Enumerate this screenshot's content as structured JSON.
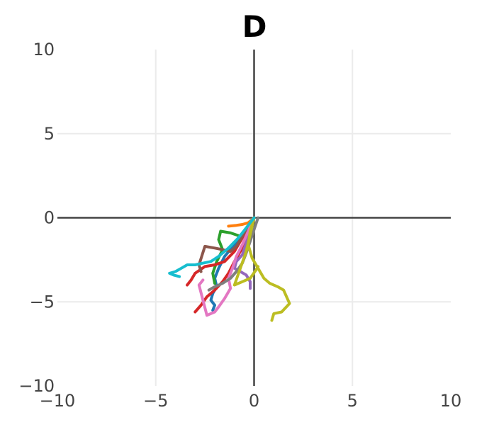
{
  "chart_data": {
    "type": "line",
    "title": "D",
    "xlabel": "",
    "ylabel": "",
    "xlim": [
      -10,
      10
    ],
    "ylim": [
      -10,
      10
    ],
    "x_ticks": [
      -10,
      -5,
      0,
      5,
      10
    ],
    "y_ticks": [
      -10,
      -5,
      0,
      5,
      10
    ],
    "x_tick_labels": [
      "−10",
      "−5",
      "0",
      "5",
      "10"
    ],
    "y_tick_labels": [
      "−10",
      "−5",
      "0",
      "5",
      "10"
    ],
    "grid": true,
    "legend": "none",
    "series": [
      {
        "color": "#1f77b4",
        "x": [
          0,
          -0.5,
          -1.0,
          -1.5,
          -1.8,
          -2.0,
          -1.9,
          -2.1,
          -2.2,
          -2.0,
          -2.1
        ],
        "y": [
          0,
          -0.8,
          -1.6,
          -2.3,
          -3.0,
          -3.6,
          -4.1,
          -4.5,
          -4.9,
          -5.2,
          -5.5
        ]
      },
      {
        "color": "#ff7f0e",
        "x": [
          0,
          -0.3,
          -0.6,
          -0.9,
          -1.3
        ],
        "y": [
          0,
          -0.3,
          -0.4,
          -0.45,
          -0.5
        ]
      },
      {
        "color": "#2ca02c",
        "x": [
          0,
          -0.3,
          -0.7,
          -1.2,
          -1.7,
          -1.8,
          -1.6,
          -1.9,
          -2.1,
          -2.0
        ],
        "y": [
          0,
          -0.6,
          -1.1,
          -0.9,
          -0.8,
          -1.3,
          -1.9,
          -2.6,
          -3.3,
          -3.9
        ]
      },
      {
        "color": "#d62728",
        "x": [
          0,
          -0.3,
          -0.6,
          -1.0,
          -1.3,
          -1.6,
          -2.0,
          -2.4,
          -2.7,
          -3.0
        ],
        "y": [
          0,
          -0.9,
          -1.8,
          -2.6,
          -3.3,
          -3.8,
          -4.3,
          -4.7,
          -5.2,
          -5.6
        ]
      },
      {
        "color": "#d62728",
        "x": [
          0,
          -0.5,
          -1.0,
          -1.5,
          -2.0,
          -2.5,
          -3.0,
          -3.2,
          -3.4
        ],
        "y": [
          0,
          -1.0,
          -2.0,
          -2.6,
          -2.8,
          -2.9,
          -3.3,
          -3.7,
          -4.0
        ]
      },
      {
        "color": "#9467bd",
        "x": [
          0,
          -0.2,
          -0.4,
          -0.6,
          -0.9,
          -1.0,
          -0.7,
          -0.4,
          -0.2,
          -0.2
        ],
        "y": [
          0,
          -0.8,
          -1.5,
          -2.2,
          -2.6,
          -3.0,
          -3.2,
          -3.4,
          -3.8,
          -4.2
        ]
      },
      {
        "color": "#8c564b",
        "x": [
          0,
          -0.3,
          -0.6,
          -0.9,
          -1.2,
          -1.6,
          -2.0,
          -2.5,
          -2.8,
          -2.7
        ],
        "y": [
          0,
          -0.5,
          -1.1,
          -1.7,
          -2.0,
          -1.9,
          -1.8,
          -1.7,
          -2.8,
          -3.2
        ]
      },
      {
        "color": "#e377c2",
        "x": [
          0,
          -0.3,
          -0.6,
          -0.9,
          -1.1,
          -1.3,
          -1.2,
          -1.5,
          -1.8,
          -2.0,
          -2.4,
          -2.8,
          -2.6
        ],
        "y": [
          0,
          -0.8,
          -1.6,
          -2.3,
          -3.0,
          -3.6,
          -4.2,
          -4.8,
          -5.3,
          -5.6,
          -5.8,
          -4.0,
          -3.7
        ]
      },
      {
        "color": "#7f7f7f",
        "x": [
          0.2,
          0,
          -0.2,
          -0.4,
          -0.6,
          -0.9,
          -1.2,
          -1.6,
          -2.0,
          -2.3
        ],
        "y": [
          0,
          -0.7,
          -1.4,
          -2.1,
          -2.7,
          -3.2,
          -3.6,
          -3.9,
          -4.1,
          -4.3
        ]
      },
      {
        "color": "#bcbd22",
        "x": [
          0,
          -0.2,
          -0.3,
          -0.1,
          0.2,
          0.5,
          0.8,
          1.2,
          1.5,
          1.8,
          1.4,
          1.0,
          0.9
        ],
        "y": [
          0,
          -0.8,
          -1.6,
          -2.4,
          -3.0,
          -3.6,
          -3.9,
          -4.1,
          -4.3,
          -5.1,
          -5.6,
          -5.7,
          -6.1
        ]
      },
      {
        "color": "#bcbd22",
        "x": [
          0,
          -0.2,
          -0.4,
          -0.7,
          -1.0,
          -0.6,
          -0.2,
          0.1,
          0.2
        ],
        "y": [
          0,
          -1.0,
          -2.0,
          -3.0,
          -4.0,
          -3.8,
          -3.6,
          -3.1,
          -2.9
        ]
      },
      {
        "color": "#17becf",
        "x": [
          0,
          -0.4,
          -0.8,
          -1.3,
          -1.8,
          -2.2,
          -2.6,
          -3.0,
          -3.4,
          -3.7,
          -4.0,
          -4.3,
          -4.1,
          -3.8
        ],
        "y": [
          0,
          -0.6,
          -1.2,
          -1.8,
          -2.3,
          -2.6,
          -2.7,
          -2.8,
          -2.8,
          -3.0,
          -3.2,
          -3.3,
          -3.4,
          -3.5
        ]
      }
    ]
  }
}
